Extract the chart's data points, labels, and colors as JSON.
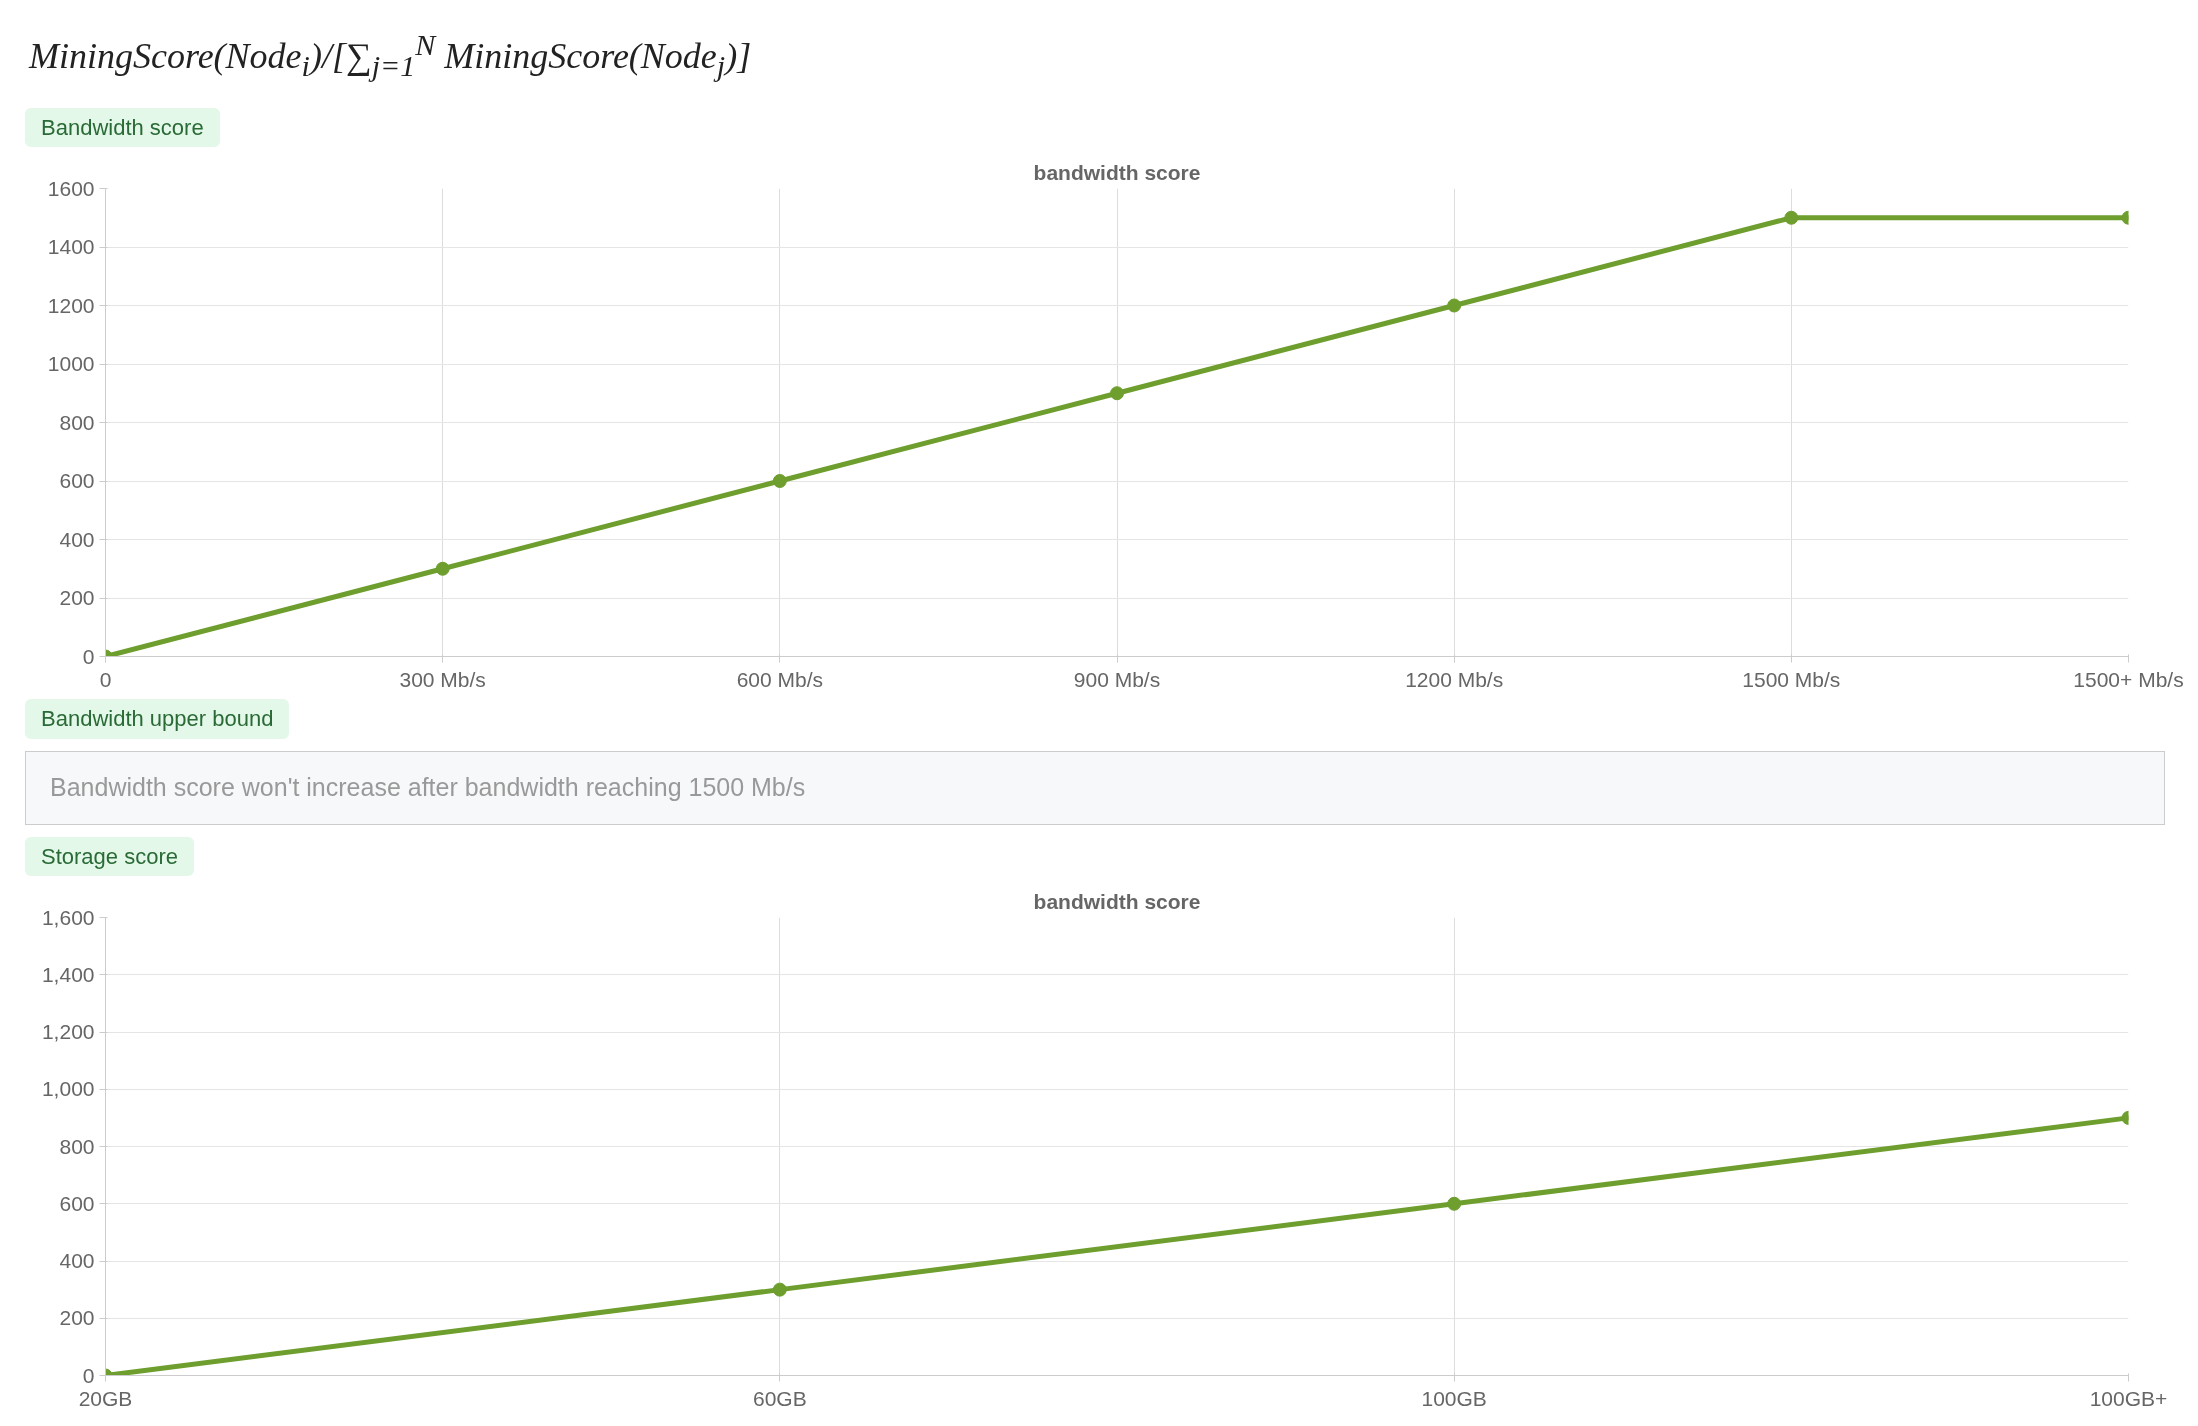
{
  "chart_data": [
    {
      "type": "line",
      "title": "bandwidth score",
      "annotations": [
        "MiningScore(Node$_{i}$)/[∑$_{j=1}$$^{N}$ MiningScore(Node$_{j}$)]",
        "Bandwidth score"
      ],
      "categories": [
        "0",
        "300 Mb/s",
        "600 Mb/s",
        "900 Mb/s",
        "1200 Mb/s",
        "1500 Mb/s",
        "1500+ Mb/s"
      ],
      "series": [
        {
          "color": "#6e9e2e",
          "values": [
            0,
            300,
            600,
            900,
            1200,
            1500,
            1500
          ]
        }
      ],
      "ylim": [
        0,
        1600
      ],
      "yticks": [
        0,
        200,
        400,
        600,
        800,
        1000,
        1200,
        1400,
        1600
      ],
      "grid": true,
      "marker": "circle",
      "line_style": "solid"
    },
    {
      "type": "line",
      "title": "bandwidth score",
      "annotations": [
        "Bandwidth upper bound",
        "Bandwidth score won't increase after bandwidth reaching 1500 Mb/s",
        "Storage score"
      ],
      "categories": [
        "20GB",
        "60GB",
        "100GB",
        "100GB+"
      ],
      "series": [
        {
          "color": "#6e9e2e",
          "values": [
            0,
            300,
            600,
            900
          ]
        }
      ],
      "ylim": [
        0,
        1600
      ],
      "yticks": [
        0,
        200,
        400,
        600,
        800,
        {
          "value": 1000,
          "label": "1,000"
        },
        {
          "value": 1200,
          "label": "1,200"
        },
        {
          "value": 1400,
          "label": "1,400"
        },
        {
          "value": 1600,
          "label": "1,600"
        }
      ],
      "grid": true,
      "marker": "circle",
      "line_style": "solid"
    }
  ]
}
